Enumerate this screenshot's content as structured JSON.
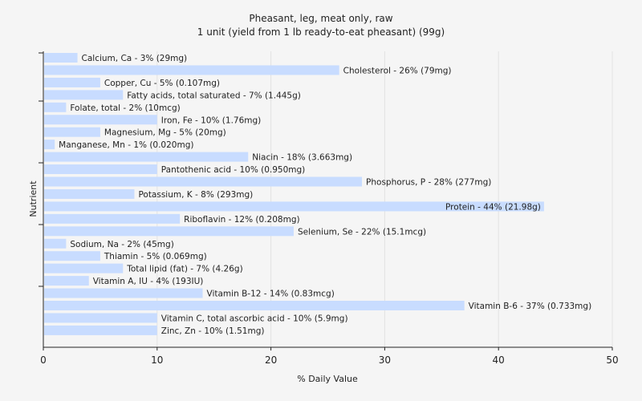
{
  "chart_data": {
    "type": "bar",
    "orientation": "horizontal",
    "title": "Pheasant, leg, meat only, raw",
    "subtitle": "1 unit (yield from 1 lb ready-to-eat pheasant) (99g)",
    "xlabel": "% Daily Value",
    "ylabel": "Nutrient",
    "xlim": [
      0,
      50
    ],
    "xticks": [
      0,
      10,
      20,
      30,
      40,
      50
    ],
    "grid": "vertical",
    "bar_color": "#c8dcff",
    "categories": [
      "Calcium, Ca",
      "Cholesterol",
      "Copper, Cu",
      "Fatty acids, total saturated",
      "Folate, total",
      "Iron, Fe",
      "Magnesium, Mg",
      "Manganese, Mn",
      "Niacin",
      "Pantothenic acid",
      "Phosphorus, P",
      "Potassium, K",
      "Protein",
      "Riboflavin",
      "Selenium, Se",
      "Sodium, Na",
      "Thiamin",
      "Total lipid (fat)",
      "Vitamin A, IU",
      "Vitamin B-12",
      "Vitamin B-6",
      "Vitamin C, total ascorbic acid",
      "Zinc, Zn"
    ],
    "values": [
      3,
      26,
      5,
      7,
      2,
      10,
      5,
      1,
      18,
      10,
      28,
      8,
      44,
      12,
      22,
      2,
      5,
      7,
      4,
      14,
      37,
      10,
      10
    ],
    "labels": [
      "Calcium, Ca - 3% (29mg)",
      "Cholesterol - 26% (79mg)",
      "Copper, Cu - 5% (0.107mg)",
      "Fatty acids, total saturated - 7% (1.445g)",
      "Folate, total - 2% (10mcg)",
      "Iron, Fe - 10% (1.76mg)",
      "Magnesium, Mg - 5% (20mg)",
      "Manganese, Mn - 1% (0.020mg)",
      "Niacin - 18% (3.663mg)",
      "Pantothenic acid - 10% (0.950mg)",
      "Phosphorus, P - 28% (277mg)",
      "Potassium, K - 8% (293mg)",
      "Protein - 44% (21.98g)",
      "Riboflavin - 12% (0.208mg)",
      "Selenium, Se - 22% (15.1mcg)",
      "Sodium, Na - 2% (45mg)",
      "Thiamin - 5% (0.069mg)",
      "Total lipid (fat) - 7% (4.26g)",
      "Vitamin A, IU - 4% (193IU)",
      "Vitamin B-12 - 14% (0.83mcg)",
      "Vitamin B-6 - 37% (0.733mg)",
      "Vitamin C, total ascorbic acid - 10% (5.9mg)",
      "Zinc, Zn - 10% (1.51mg)"
    ],
    "label_inside_bar": [
      false,
      false,
      false,
      false,
      false,
      false,
      false,
      false,
      false,
      false,
      false,
      false,
      true,
      false,
      false,
      false,
      false,
      false,
      false,
      false,
      false,
      false,
      false
    ]
  }
}
